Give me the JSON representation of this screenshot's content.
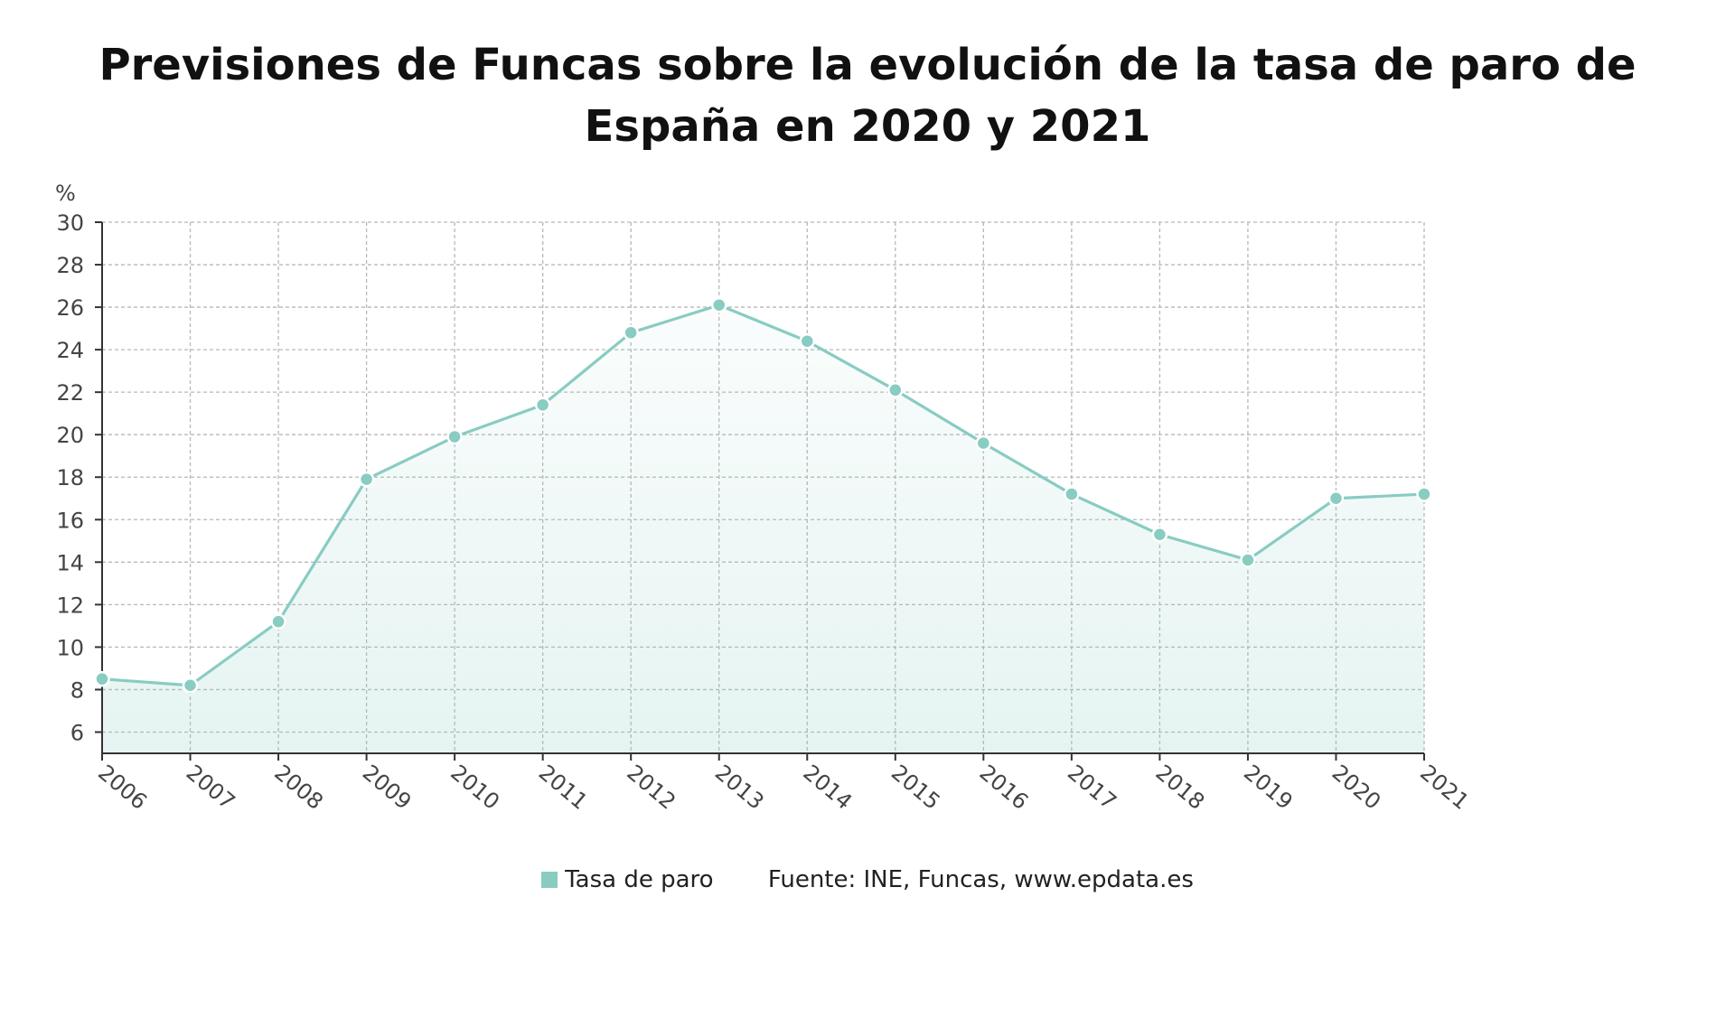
{
  "title_line1": "Previsiones de Funcas sobre la evolución de la tasa de paro de",
  "title_line2": "España en 2020 y 2021",
  "source": "Fuente: INE, Funcas, www.epdata.es",
  "colors": {
    "series": "#88ccc2",
    "marker_stroke": "#ffffff",
    "grid": "#b8b8b8",
    "axis": "#333333",
    "text": "#444444"
  },
  "chart_data": {
    "type": "area",
    "title": "Previsiones de Funcas sobre la evolución de la tasa de paro de España en 2020 y 2021",
    "ylabel": "%",
    "xlabel": "",
    "ylim": [
      5,
      30
    ],
    "yticks": [
      6,
      8,
      10,
      12,
      14,
      16,
      18,
      20,
      22,
      24,
      26,
      28,
      30
    ],
    "categories": [
      "2006",
      "2007",
      "2008",
      "2009",
      "2010",
      "2011",
      "2012",
      "2013",
      "2014",
      "2015",
      "2016",
      "2017",
      "2018",
      "2019",
      "2020",
      "2021"
    ],
    "series": [
      {
        "name": "Tasa de paro",
        "values": [
          8.5,
          8.2,
          11.2,
          17.9,
          19.9,
          21.4,
          24.8,
          26.1,
          24.4,
          22.1,
          19.6,
          17.2,
          15.3,
          14.1,
          17.0,
          17.2
        ]
      }
    ],
    "grid": true,
    "legend": "bottom"
  }
}
